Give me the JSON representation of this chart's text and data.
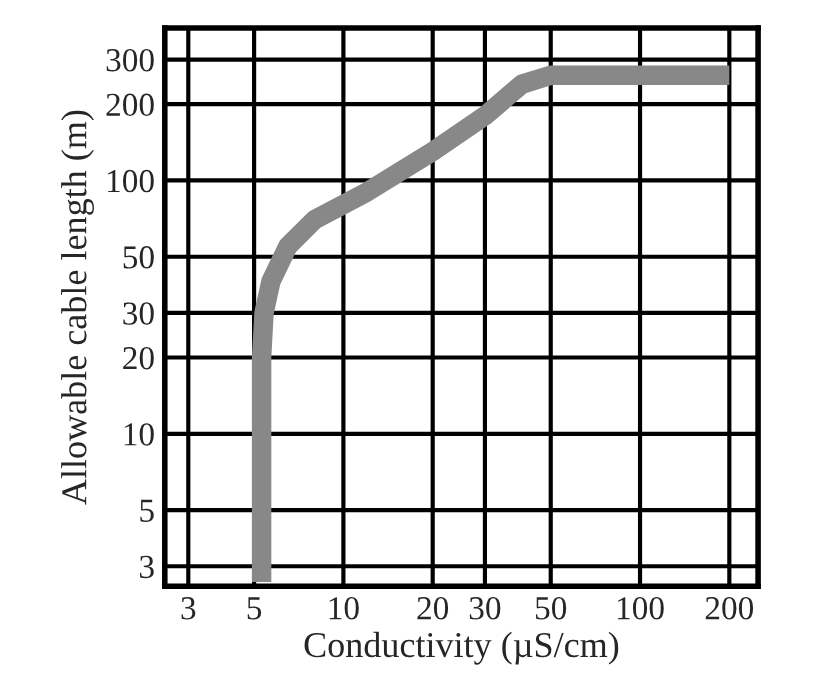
{
  "chart_data": {
    "type": "line",
    "xlabel": "Conductivity (µS/cm)",
    "ylabel": "Allowable cable length (m)",
    "log": "xy",
    "grid": true,
    "marker": "none",
    "line_style": "solid",
    "xlim": [
      2.5,
      250
    ],
    "ylim": [
      2.5,
      400
    ],
    "xticks": [
      3,
      5,
      10,
      20,
      30,
      50,
      100,
      200
    ],
    "yticks": [
      3,
      5,
      10,
      20,
      30,
      50,
      100,
      200,
      300
    ],
    "series": [
      {
        "color": "#888888",
        "x": [
          5.3,
          5.3,
          5.3,
          5.4,
          5.7,
          6.5,
          8,
          12,
          20,
          30,
          40,
          50,
          100,
          200
        ],
        "values": [
          2.6,
          10,
          20,
          30,
          40,
          55,
          70,
          90,
          130,
          180,
          240,
          260,
          260,
          260
        ]
      }
    ]
  }
}
